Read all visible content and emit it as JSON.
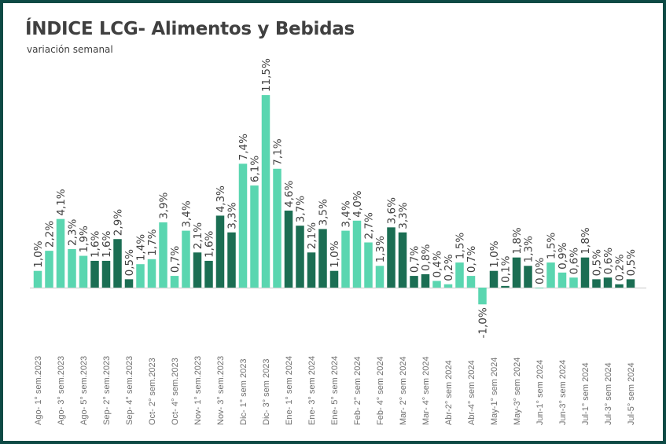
{
  "chart_data": {
    "type": "bar",
    "title": "ÍNDICE LCG- Alimentos y Bebidas",
    "subtitle": "variación semanal",
    "xlabel": "",
    "ylabel": "",
    "ylim": [
      -1.5,
      12
    ],
    "grid": false,
    "legend": "none",
    "colors": {
      "light": "#5ad6b0",
      "dark": "#1b6e53",
      "axis": "#d9d9d9",
      "label": "#404040",
      "tick": "#707070"
    },
    "value_suffix": "%",
    "months": [
      {
        "color": "light",
        "values": [
          1.0,
          2.2,
          4.1,
          2.3,
          1.9
        ]
      },
      {
        "color": "dark",
        "values": [
          1.6,
          1.6,
          2.9,
          0.5
        ]
      },
      {
        "color": "light",
        "values": [
          1.4,
          1.7,
          3.9,
          0.7,
          3.4
        ]
      },
      {
        "color": "dark",
        "values": [
          2.1,
          1.6,
          4.3,
          3.3
        ]
      },
      {
        "color": "light",
        "values": [
          7.4,
          6.1,
          11.5,
          7.1
        ]
      },
      {
        "color": "dark",
        "values": [
          4.6,
          3.7,
          2.1,
          3.5,
          1.0
        ]
      },
      {
        "color": "light",
        "values": [
          3.4,
          4.0,
          2.7,
          1.3
        ]
      },
      {
        "color": "dark",
        "values": [
          3.6,
          3.3,
          0.7,
          0.8
        ]
      },
      {
        "color": "light",
        "values": [
          0.4,
          0.2,
          1.5,
          0.7,
          -1.0
        ]
      },
      {
        "color": "dark",
        "values": [
          1.0,
          0.1,
          1.8,
          1.3
        ]
      },
      {
        "color": "light",
        "values": [
          0.0,
          1.5,
          0.9,
          0.6
        ]
      },
      {
        "color": "dark",
        "values": [
          1.8,
          0.5,
          0.6,
          0.2,
          0.5
        ]
      }
    ],
    "tick_labels": [
      "Ago- 1° sem.2023",
      "Ago- 3° sem.2023",
      "Ago- 5° sem.2023",
      "Sep- 2° sem.2023",
      "Sep- 4° sem.2023",
      "Oct- 2° sem.2023",
      "Oct- 4° sem.2023",
      "Nov- 1° sem.2023",
      "Nov- 3° sem.2023",
      "Dic- 1° sem 2023",
      "Dic- 3° sem 2023",
      "Ene- 1° sem 2024",
      "Ene- 3° sem 2024",
      "Ene- 5° sem 2024",
      "Feb- 2° sem 2024",
      "Feb- 4° sem 2024",
      "Mar- 2° sem 2024",
      "Mar- 4° sem 2024",
      "Abr-2° sem 2024",
      "Abr-4° sem 2024",
      "May-1° sem 2024",
      "May-3° sem 2024",
      "Jun-1° sem 2024",
      "Jun-3° sem 2024",
      "Jul-1° sem 2024",
      "Jul-3° sem 2024",
      "Jul-5° sem 2024"
    ]
  }
}
